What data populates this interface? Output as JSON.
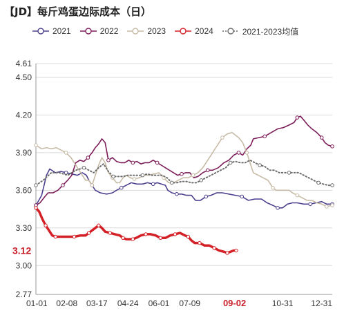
{
  "chart_data": {
    "type": "line",
    "title": "【JD】每斤鸡蛋边际成本（日）",
    "xlabel": "",
    "ylabel": "",
    "ylim": [
      2.77,
      4.61
    ],
    "yticks": [
      "4.61",
      "4.50",
      "4.20",
      "3.90",
      "3.60",
      "3.30",
      "3.00",
      "2.77"
    ],
    "xticks": [
      "01-01",
      "02-08",
      "03-17",
      "04-24",
      "06-01",
      "07-09",
      "09-02",
      "10-31",
      "12-31"
    ],
    "xtick_days": [
      1,
      39,
      76,
      114,
      152,
      190,
      245,
      304,
      365
    ],
    "xlim": [
      1,
      365
    ],
    "highlight_xtick": "09-02",
    "current_value_label": "3.12",
    "grid": true,
    "legend_position": "top",
    "series": [
      {
        "name": "2021",
        "color": "#4b3f8e",
        "style": "solid",
        "points": [
          [
            1,
            3.48
          ],
          [
            8,
            3.56
          ],
          [
            14,
            3.72
          ],
          [
            18,
            3.77
          ],
          [
            25,
            3.74
          ],
          [
            32,
            3.75
          ],
          [
            38,
            3.74
          ],
          [
            45,
            3.73
          ],
          [
            52,
            3.72
          ],
          [
            58,
            3.74
          ],
          [
            63,
            3.72
          ],
          [
            66,
            3.68
          ],
          [
            70,
            3.64
          ],
          [
            74,
            3.6
          ],
          [
            80,
            3.58
          ],
          [
            88,
            3.57
          ],
          [
            95,
            3.58
          ],
          [
            100,
            3.6
          ],
          [
            106,
            3.62
          ],
          [
            112,
            3.64
          ],
          [
            118,
            3.66
          ],
          [
            125,
            3.65
          ],
          [
            132,
            3.65
          ],
          [
            138,
            3.66
          ],
          [
            145,
            3.65
          ],
          [
            150,
            3.66
          ],
          [
            155,
            3.65
          ],
          [
            160,
            3.64
          ],
          [
            163,
            3.6
          ],
          [
            168,
            3.58
          ],
          [
            174,
            3.57
          ],
          [
            180,
            3.57
          ],
          [
            186,
            3.56
          ],
          [
            192,
            3.56
          ],
          [
            197,
            3.52
          ],
          [
            203,
            3.52
          ],
          [
            210,
            3.55
          ],
          [
            216,
            3.56
          ],
          [
            223,
            3.58
          ],
          [
            230,
            3.58
          ],
          [
            238,
            3.57
          ],
          [
            246,
            3.56
          ],
          [
            254,
            3.55
          ],
          [
            262,
            3.52
          ],
          [
            270,
            3.53
          ],
          [
            278,
            3.53
          ],
          [
            285,
            3.5
          ],
          [
            292,
            3.48
          ],
          [
            298,
            3.46
          ],
          [
            304,
            3.46
          ],
          [
            310,
            3.49
          ],
          [
            316,
            3.5
          ],
          [
            322,
            3.5
          ],
          [
            330,
            3.49
          ],
          [
            338,
            3.49
          ],
          [
            345,
            3.5
          ],
          [
            352,
            3.51
          ],
          [
            358,
            3.49
          ],
          [
            365,
            3.49
          ]
        ]
      },
      {
        "name": "2022",
        "color": "#7c1c58",
        "style": "solid",
        "points": [
          [
            1,
            3.48
          ],
          [
            6,
            3.5
          ],
          [
            12,
            3.55
          ],
          [
            16,
            3.58
          ],
          [
            22,
            3.58
          ],
          [
            28,
            3.6
          ],
          [
            34,
            3.64
          ],
          [
            40,
            3.68
          ],
          [
            45,
            3.72
          ],
          [
            50,
            3.82
          ],
          [
            55,
            3.84
          ],
          [
            60,
            3.83
          ],
          [
            65,
            3.86
          ],
          [
            70,
            3.9
          ],
          [
            74,
            3.94
          ],
          [
            78,
            3.97
          ],
          [
            82,
            4.01
          ],
          [
            86,
            3.98
          ],
          [
            90,
            3.84
          ],
          [
            95,
            3.86
          ],
          [
            100,
            3.83
          ],
          [
            105,
            3.82
          ],
          [
            110,
            3.82
          ],
          [
            115,
            3.84
          ],
          [
            120,
            3.82
          ],
          [
            125,
            3.83
          ],
          [
            130,
            3.81
          ],
          [
            135,
            3.82
          ],
          [
            140,
            3.82
          ],
          [
            145,
            3.84
          ],
          [
            150,
            3.82
          ],
          [
            155,
            3.8
          ],
          [
            160,
            3.78
          ],
          [
            165,
            3.76
          ],
          [
            170,
            3.74
          ],
          [
            175,
            3.72
          ],
          [
            180,
            3.73
          ],
          [
            185,
            3.74
          ],
          [
            190,
            3.74
          ],
          [
            195,
            3.7
          ],
          [
            200,
            3.71
          ],
          [
            206,
            3.74
          ],
          [
            212,
            3.76
          ],
          [
            218,
            3.76
          ],
          [
            225,
            3.78
          ],
          [
            232,
            3.82
          ],
          [
            238,
            3.84
          ],
          [
            244,
            3.88
          ],
          [
            250,
            3.9
          ],
          [
            255,
            3.88
          ],
          [
            260,
            3.93
          ],
          [
            265,
            3.96
          ],
          [
            268,
            4.01
          ],
          [
            275,
            4.02
          ],
          [
            282,
            4.03
          ],
          [
            290,
            4.06
          ],
          [
            298,
            4.09
          ],
          [
            305,
            4.1
          ],
          [
            312,
            4.12
          ],
          [
            318,
            4.14
          ],
          [
            322,
            4.18
          ],
          [
            326,
            4.19
          ],
          [
            330,
            4.16
          ],
          [
            335,
            4.12
          ],
          [
            340,
            4.09
          ],
          [
            346,
            4.06
          ],
          [
            352,
            4.02
          ],
          [
            356,
            3.98
          ],
          [
            360,
            3.96
          ],
          [
            365,
            3.95
          ]
        ]
      },
      {
        "name": "2023",
        "color": "#c7bba6",
        "style": "solid",
        "points": [
          [
            1,
            3.96
          ],
          [
            8,
            3.93
          ],
          [
            14,
            3.94
          ],
          [
            20,
            3.93
          ],
          [
            26,
            3.94
          ],
          [
            32,
            3.92
          ],
          [
            38,
            3.9
          ],
          [
            44,
            3.86
          ],
          [
            50,
            3.8
          ],
          [
            56,
            3.74
          ],
          [
            62,
            3.68
          ],
          [
            66,
            3.68
          ],
          [
            70,
            3.64
          ],
          [
            74,
            3.72
          ],
          [
            78,
            3.8
          ],
          [
            82,
            3.86
          ],
          [
            86,
            3.82
          ],
          [
            90,
            3.74
          ],
          [
            95,
            3.7
          ],
          [
            100,
            3.66
          ],
          [
            104,
            3.66
          ],
          [
            108,
            3.7
          ],
          [
            112,
            3.72
          ],
          [
            117,
            3.7
          ],
          [
            122,
            3.69
          ],
          [
            128,
            3.7
          ],
          [
            134,
            3.72
          ],
          [
            140,
            3.72
          ],
          [
            146,
            3.73
          ],
          [
            152,
            3.74
          ],
          [
            158,
            3.7
          ],
          [
            164,
            3.66
          ],
          [
            170,
            3.66
          ],
          [
            176,
            3.68
          ],
          [
            182,
            3.7
          ],
          [
            188,
            3.7
          ],
          [
            194,
            3.72
          ],
          [
            200,
            3.74
          ],
          [
            206,
            3.78
          ],
          [
            212,
            3.84
          ],
          [
            218,
            3.9
          ],
          [
            224,
            3.96
          ],
          [
            230,
            4.02
          ],
          [
            236,
            4.05
          ],
          [
            242,
            4.06
          ],
          [
            246,
            4.04
          ],
          [
            250,
            4.02
          ],
          [
            255,
            3.98
          ],
          [
            260,
            3.9
          ],
          [
            264,
            3.82
          ],
          [
            268,
            3.74
          ],
          [
            274,
            3.72
          ],
          [
            280,
            3.7
          ],
          [
            286,
            3.68
          ],
          [
            292,
            3.62
          ],
          [
            296,
            3.6
          ],
          [
            300,
            3.6
          ],
          [
            306,
            3.6
          ],
          [
            312,
            3.6
          ],
          [
            316,
            3.58
          ],
          [
            322,
            3.56
          ],
          [
            328,
            3.54
          ],
          [
            334,
            3.52
          ],
          [
            340,
            3.52
          ],
          [
            346,
            3.5
          ],
          [
            352,
            3.49
          ],
          [
            358,
            3.47
          ],
          [
            365,
            3.48
          ]
        ]
      },
      {
        "name": "2024",
        "color": "#d42127",
        "style": "solid",
        "points": [
          [
            1,
            3.46
          ],
          [
            5,
            3.43
          ],
          [
            9,
            3.37
          ],
          [
            13,
            3.32
          ],
          [
            17,
            3.28
          ],
          [
            21,
            3.24
          ],
          [
            25,
            3.23
          ],
          [
            32,
            3.23
          ],
          [
            40,
            3.23
          ],
          [
            48,
            3.23
          ],
          [
            56,
            3.24
          ],
          [
            62,
            3.24
          ],
          [
            66,
            3.26
          ],
          [
            70,
            3.28
          ],
          [
            74,
            3.3
          ],
          [
            78,
            3.32
          ],
          [
            82,
            3.3
          ],
          [
            86,
            3.27
          ],
          [
            92,
            3.26
          ],
          [
            98,
            3.25
          ],
          [
            104,
            3.24
          ],
          [
            108,
            3.22
          ],
          [
            112,
            3.21
          ],
          [
            116,
            3.21
          ],
          [
            120,
            3.21
          ],
          [
            124,
            3.22
          ],
          [
            130,
            3.24
          ],
          [
            136,
            3.25
          ],
          [
            142,
            3.25
          ],
          [
            148,
            3.24
          ],
          [
            154,
            3.22
          ],
          [
            160,
            3.22
          ],
          [
            166,
            3.24
          ],
          [
            172,
            3.25
          ],
          [
            178,
            3.26
          ],
          [
            184,
            3.24
          ],
          [
            188,
            3.23
          ],
          [
            192,
            3.2
          ],
          [
            196,
            3.18
          ],
          [
            202,
            3.18
          ],
          [
            208,
            3.16
          ],
          [
            214,
            3.16
          ],
          [
            220,
            3.14
          ],
          [
            226,
            3.12
          ],
          [
            232,
            3.11
          ],
          [
            236,
            3.1
          ],
          [
            240,
            3.11
          ],
          [
            244,
            3.12
          ],
          [
            247,
            3.12
          ]
        ]
      },
      {
        "name": "2021-2023均值",
        "color": "#6d6d6d",
        "style": "dotted",
        "points": [
          [
            1,
            3.64
          ],
          [
            10,
            3.68
          ],
          [
            20,
            3.74
          ],
          [
            30,
            3.74
          ],
          [
            40,
            3.72
          ],
          [
            50,
            3.76
          ],
          [
            60,
            3.78
          ],
          [
            66,
            3.76
          ],
          [
            72,
            3.74
          ],
          [
            78,
            3.78
          ],
          [
            84,
            3.81
          ],
          [
            90,
            3.75
          ],
          [
            96,
            3.71
          ],
          [
            102,
            3.71
          ],
          [
            108,
            3.71
          ],
          [
            114,
            3.72
          ],
          [
            120,
            3.72
          ],
          [
            126,
            3.72
          ],
          [
            132,
            3.72
          ],
          [
            138,
            3.73
          ],
          [
            144,
            3.72
          ],
          [
            150,
            3.72
          ],
          [
            156,
            3.72
          ],
          [
            162,
            3.7
          ],
          [
            168,
            3.66
          ],
          [
            174,
            3.66
          ],
          [
            180,
            3.67
          ],
          [
            186,
            3.67
          ],
          [
            192,
            3.66
          ],
          [
            198,
            3.66
          ],
          [
            204,
            3.68
          ],
          [
            210,
            3.7
          ],
          [
            216,
            3.72
          ],
          [
            222,
            3.74
          ],
          [
            228,
            3.76
          ],
          [
            234,
            3.78
          ],
          [
            240,
            3.82
          ],
          [
            246,
            3.83
          ],
          [
            252,
            3.82
          ],
          [
            258,
            3.82
          ],
          [
            264,
            3.84
          ],
          [
            270,
            3.82
          ],
          [
            276,
            3.8
          ],
          [
            282,
            3.79
          ],
          [
            288,
            3.76
          ],
          [
            294,
            3.76
          ],
          [
            300,
            3.74
          ],
          [
            306,
            3.74
          ],
          [
            312,
            3.74
          ],
          [
            318,
            3.74
          ],
          [
            324,
            3.74
          ],
          [
            330,
            3.72
          ],
          [
            336,
            3.7
          ],
          [
            342,
            3.68
          ],
          [
            348,
            3.66
          ],
          [
            354,
            3.65
          ],
          [
            360,
            3.64
          ],
          [
            365,
            3.64
          ]
        ]
      }
    ]
  }
}
